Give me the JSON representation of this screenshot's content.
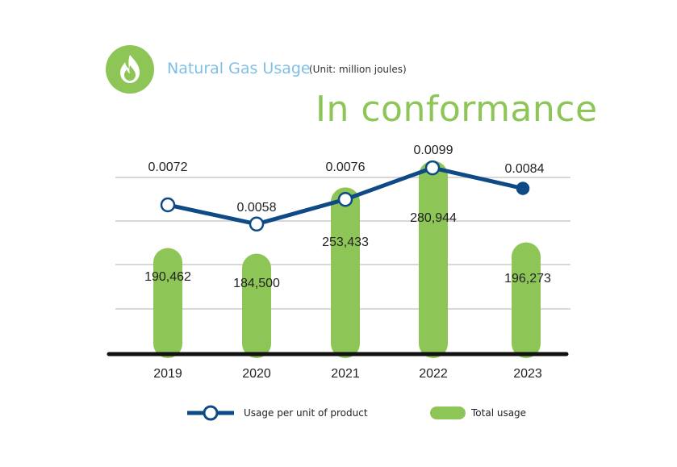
{
  "header": {
    "title": "Natural Gas Usage",
    "unit": "(Unit: million joules)",
    "status": "In conformance",
    "icon": "flame-icon"
  },
  "colors": {
    "bar": "#8dc556",
    "line": "#0d4a86",
    "grid": "#cccccc",
    "axis": "#111111",
    "icon_bg": "#8dc556",
    "title": "#7fbfe6"
  },
  "chart_data": {
    "type": "bar",
    "categories": [
      "2019",
      "2020",
      "2021",
      "2022",
      "2023"
    ],
    "series": [
      {
        "name": "Total usage",
        "type": "bar",
        "values": [
          190462,
          184500,
          253433,
          280944,
          196273
        ],
        "value_labels": [
          "190,462",
          "184,500",
          "253,433",
          "280,944",
          "196,273"
        ]
      },
      {
        "name": "Usage per unit of product",
        "type": "line",
        "values": [
          0.0072,
          0.0058,
          0.0076,
          0.0099,
          0.0084
        ],
        "value_labels": [
          "0.0072",
          "0.0058",
          "0.0076",
          "0.0099",
          "0.0084"
        ]
      }
    ],
    "grid": true,
    "legend_position": "bottom"
  },
  "legend": {
    "line_label": "Usage per unit of product",
    "bar_label": "Total usage"
  }
}
